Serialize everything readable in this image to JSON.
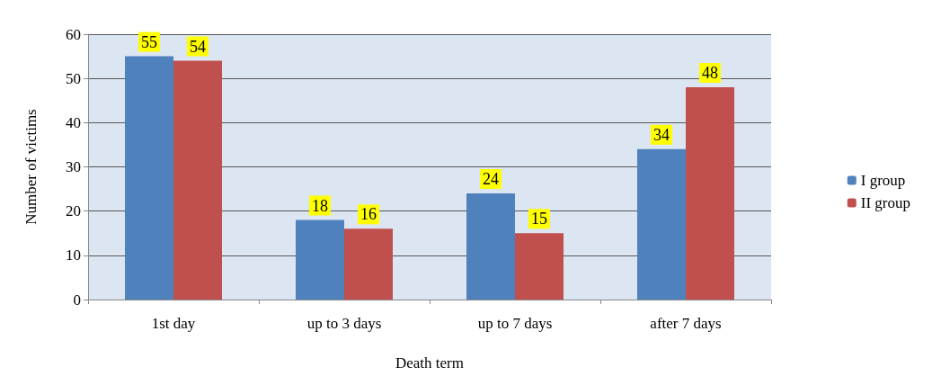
{
  "chart_data": {
    "type": "bar",
    "xlabel": "Death term",
    "ylabel": "Number of victims",
    "categories": [
      "1st day",
      "up to 3 days",
      "up to 7 days",
      "after 7 days"
    ],
    "series": [
      {
        "name": "I group",
        "color": "#4f81bd",
        "values": [
          55,
          18,
          24,
          34
        ]
      },
      {
        "name": "II group",
        "color": "#c0504d",
        "values": [
          54,
          16,
          15,
          48
        ]
      }
    ],
    "ylim": [
      0,
      60
    ],
    "yticks": [
      0,
      10,
      20,
      30,
      40,
      50,
      60
    ],
    "grid": "y",
    "legend": "right",
    "data_labels": true
  }
}
